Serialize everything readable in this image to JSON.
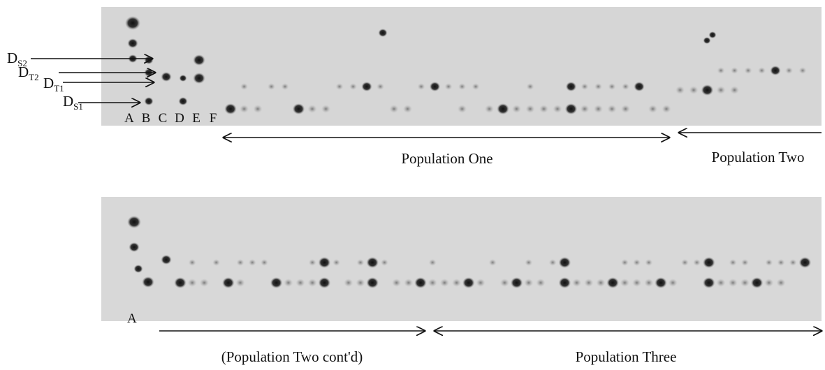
{
  "markers": [
    {
      "main": "D",
      "sub": "S2"
    },
    {
      "main": "D",
      "sub": "T2"
    },
    {
      "main": "D",
      "sub": "T1"
    },
    {
      "main": "D",
      "sub": "S1"
    }
  ],
  "top_panel": {
    "lanes": [
      "A",
      "B",
      "C",
      "D",
      "E",
      "F"
    ],
    "labels": [
      "Population One",
      "Population Two"
    ]
  },
  "bottom_panel": {
    "lane": "A",
    "labels": [
      "(Population Two cont'd)",
      "Population Three"
    ]
  }
}
